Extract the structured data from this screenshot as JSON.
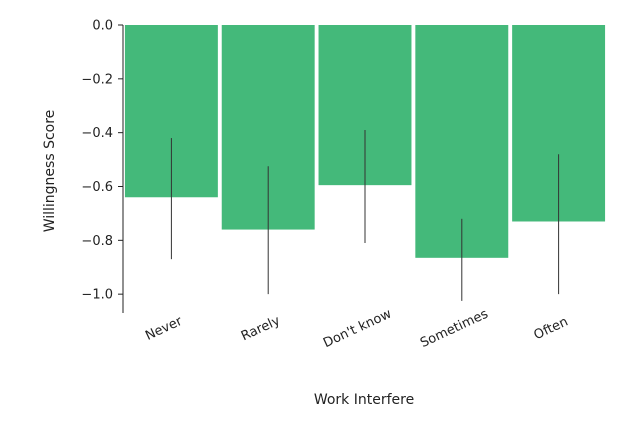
{
  "chart_data": {
    "type": "bar",
    "xlabel": "Work Interfere",
    "ylabel": "Willingness Score",
    "categories": [
      "Never",
      "Rarely",
      "Don't know",
      "Sometimes",
      "Often"
    ],
    "values": [
      -0.64,
      -0.76,
      -0.595,
      -0.865,
      -0.73
    ],
    "error_low": [
      -0.87,
      -1.0,
      -0.81,
      -1.025,
      -1.0
    ],
    "error_high": [
      -0.42,
      -0.525,
      -0.39,
      -0.72,
      -0.48
    ],
    "ylim": [
      -1.07,
      0.0
    ],
    "yticks": [
      0.0,
      -0.2,
      -0.4,
      -0.6,
      -0.8,
      -1.0
    ],
    "ytick_labels": [
      "0.0",
      "−0.2",
      "−0.4",
      "−0.6",
      "−0.8",
      "−1.0"
    ],
    "grid": false,
    "bar_color": "#44b97a",
    "error_color": "#333333"
  }
}
